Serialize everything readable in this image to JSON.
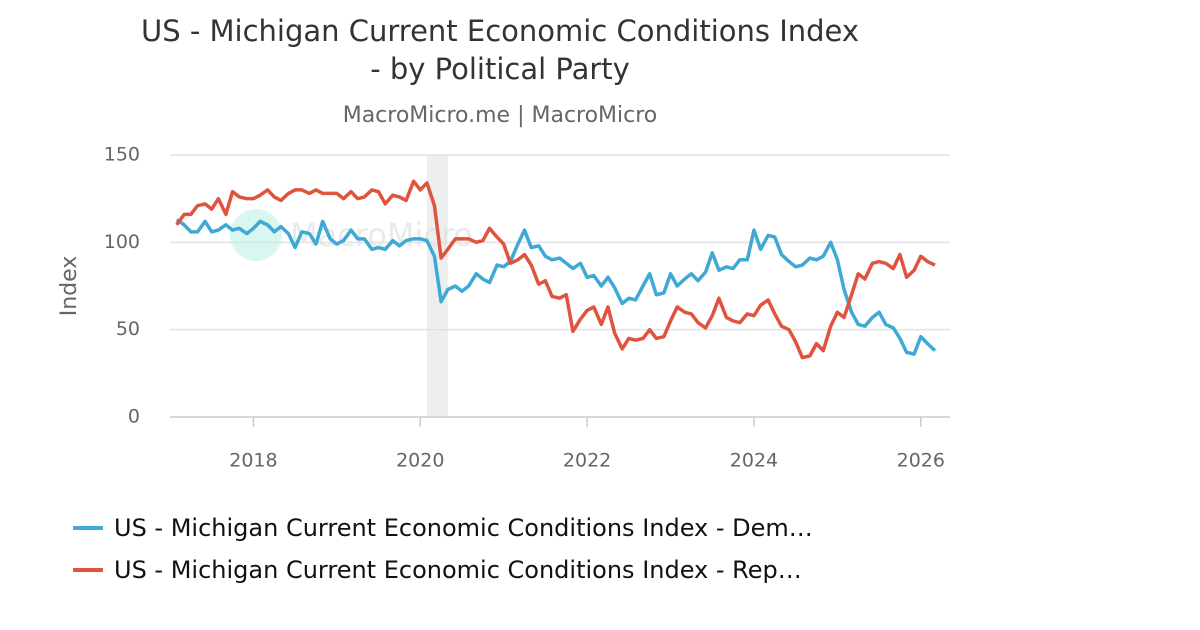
{
  "chart_data": {
    "type": "line",
    "title": [
      "US - Michigan Current Economic Conditions Index",
      "- by Political Party"
    ],
    "subtitle": "MacroMicro.me | MacroMicro",
    "watermark": "MacroMicro",
    "y_label": "Index",
    "xlim": [
      2017,
      2026.35
    ],
    "xticks": [
      2018,
      2020,
      2022,
      2024,
      2026
    ],
    "ylim": [
      0,
      150
    ],
    "yticks": [
      0,
      50,
      100,
      150
    ],
    "grid": true,
    "shaded": [
      2020.08,
      2020.33
    ],
    "x": [
      2017.08,
      2017.17,
      2017.25,
      2017.33,
      2017.42,
      2017.5,
      2017.58,
      2017.67,
      2017.75,
      2017.83,
      2017.92,
      2018,
      2018.08,
      2018.17,
      2018.25,
      2018.33,
      2018.42,
      2018.5,
      2018.58,
      2018.67,
      2018.75,
      2018.83,
      2018.92,
      2019,
      2019.08,
      2019.17,
      2019.25,
      2019.33,
      2019.42,
      2019.5,
      2019.58,
      2019.67,
      2019.75,
      2019.83,
      2019.92,
      2020,
      2020.08,
      2020.17,
      2020.25,
      2020.33,
      2020.42,
      2020.5,
      2020.58,
      2020.67,
      2020.75,
      2020.83,
      2020.92,
      2021,
      2021.08,
      2021.17,
      2021.25,
      2021.33,
      2021.42,
      2021.5,
      2021.58,
      2021.67,
      2021.75,
      2021.83,
      2021.92,
      2022,
      2022.08,
      2022.17,
      2022.25,
      2022.33,
      2022.42,
      2022.5,
      2022.58,
      2022.67,
      2022.75,
      2022.83,
      2022.92,
      2023,
      2023.08,
      2023.17,
      2023.25,
      2023.33,
      2023.42,
      2023.5,
      2023.58,
      2023.67,
      2023.75,
      2023.83,
      2023.92,
      2024,
      2024.08,
      2024.17,
      2024.25,
      2024.33,
      2024.42,
      2024.5,
      2024.58,
      2024.67,
      2024.75,
      2024.83,
      2024.92,
      2025,
      2025.08,
      2025.17,
      2025.25,
      2025.33,
      2025.42,
      2025.5,
      2025.58,
      2025.67,
      2025.75,
      2025.83,
      2025.92,
      2026,
      2026.08,
      2026.17
    ],
    "series": [
      {
        "name": "US - Michigan Current Economic Conditions Index - Dem…",
        "color": "#3fa9d5",
        "values": [
          113,
          110,
          106,
          106,
          112,
          106,
          107,
          110,
          107,
          108,
          105,
          108,
          112,
          110,
          106,
          109,
          105,
          97,
          106,
          105,
          99,
          112,
          102,
          99,
          101,
          107,
          102,
          102,
          96,
          97,
          96,
          101,
          98,
          101,
          102,
          102,
          101,
          92,
          66,
          73,
          75,
          72,
          75,
          82,
          79,
          77,
          87,
          86,
          89,
          99,
          107,
          97,
          98,
          92,
          90,
          91,
          88,
          85,
          88,
          80,
          81,
          75,
          80,
          74,
          65,
          68,
          67,
          75,
          82,
          70,
          71,
          82,
          75,
          79,
          82,
          78,
          83,
          94,
          84,
          86,
          85,
          90,
          90,
          107,
          96,
          104,
          103,
          93,
          89,
          86,
          87,
          91,
          90,
          92,
          100,
          90,
          73,
          60,
          53,
          52,
          57,
          60,
          53,
          51,
          45,
          37,
          36,
          46,
          42,
          38
        ]
      },
      {
        "name": "US - Michigan Current Economic Conditions Index - Rep…",
        "color": "#e0533d",
        "values": [
          110,
          116,
          116,
          121,
          122,
          119,
          125,
          116,
          129,
          126,
          125,
          125,
          127,
          130,
          126,
          124,
          128,
          130,
          130,
          128,
          130,
          128,
          128,
          128,
          125,
          129,
          125,
          126,
          130,
          129,
          122,
          127,
          126,
          124,
          135,
          130,
          134,
          121,
          91,
          96,
          102,
          102,
          102,
          100,
          101,
          108,
          103,
          99,
          88,
          90,
          93,
          87,
          76,
          78,
          69,
          68,
          70,
          49,
          56,
          61,
          63,
          53,
          63,
          48,
          39,
          45,
          44,
          45,
          50,
          45,
          46,
          55,
          63,
          60,
          59,
          54,
          51,
          58,
          68,
          57,
          55,
          54,
          59,
          58,
          64,
          67,
          59,
          52,
          50,
          43,
          34,
          35,
          42,
          38,
          52,
          60,
          57,
          70,
          82,
          79,
          88,
          89,
          88,
          85,
          93,
          80,
          84,
          92,
          89,
          87
        ]
      }
    ]
  }
}
